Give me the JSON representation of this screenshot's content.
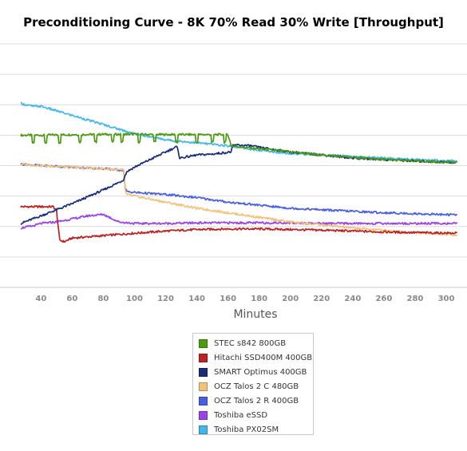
{
  "chart_data": {
    "type": "line",
    "title": "Preconditioning Curve - 8K 70% Read 30% Write [Throughput]",
    "xlabel": "Minutes",
    "ylabel": "",
    "x_ticks": [
      40,
      60,
      80,
      100,
      120,
      140,
      160,
      180,
      200,
      220,
      240,
      260,
      280,
      300
    ],
    "xlim": [
      27,
      307
    ],
    "ylim": [
      0,
      8
    ],
    "grid": true,
    "legend_position": "bottom",
    "series": [
      {
        "name": "STEC s842 800GB",
        "color": "#4c9a10",
        "x": [
          27,
          40,
          60,
          80,
          100,
          120,
          140,
          160,
          162,
          180,
          200,
          220,
          240,
          260,
          280,
          307
        ],
        "values": [
          5.0,
          5.0,
          5.02,
          5.03,
          5.03,
          5.02,
          5.02,
          5.02,
          4.65,
          4.55,
          4.45,
          4.35,
          4.27,
          4.2,
          4.15,
          4.1
        ],
        "dips": [
          35,
          43,
          52,
          65,
          75,
          86,
          92,
          103,
          113,
          127,
          140,
          150,
          158
        ]
      },
      {
        "name": "Hitachi SSD400M 400GB",
        "color": "#bb2222",
        "x": [
          27,
          40,
          48,
          50,
          52,
          55,
          60,
          80,
          100,
          120,
          140,
          160,
          180,
          200,
          220,
          240,
          260,
          280,
          307
        ],
        "values": [
          2.65,
          2.65,
          2.65,
          2.5,
          1.55,
          1.5,
          1.62,
          1.7,
          1.78,
          1.85,
          1.9,
          1.92,
          1.92,
          1.9,
          1.88,
          1.85,
          1.82,
          1.8,
          1.78
        ]
      },
      {
        "name": "SMART Optimus 400GB",
        "color": "#1a2c7a",
        "x": [
          27,
          40,
          60,
          80,
          92,
          93,
          95,
          100,
          110,
          120,
          127,
          128,
          129,
          135,
          140,
          150,
          162,
          163,
          165,
          175,
          180,
          200,
          220,
          240,
          260,
          280,
          307
        ],
        "values": [
          2.1,
          2.35,
          2.75,
          3.2,
          3.5,
          3.55,
          3.8,
          3.95,
          4.2,
          4.45,
          4.62,
          4.5,
          4.25,
          4.3,
          4.35,
          4.38,
          4.45,
          4.65,
          4.68,
          4.65,
          4.6,
          4.45,
          4.35,
          4.25,
          4.2,
          4.15,
          4.1
        ]
      },
      {
        "name": "OCZ Talos 2 C 480GB",
        "color": "#f2c27c",
        "x": [
          27,
          40,
          60,
          80,
          93,
          94,
          95,
          100,
          120,
          140,
          160,
          180,
          200,
          220,
          240,
          260,
          280,
          307
        ],
        "values": [
          4.05,
          4.0,
          3.95,
          3.9,
          3.85,
          3.2,
          3.05,
          3.0,
          2.8,
          2.6,
          2.45,
          2.3,
          2.15,
          2.05,
          1.95,
          1.88,
          1.8,
          1.72
        ]
      },
      {
        "name": "OCZ Talos 2 R 400GB",
        "color": "#4a5fe0",
        "x": [
          27,
          40,
          60,
          80,
          93,
          94,
          95,
          100,
          120,
          140,
          160,
          180,
          200,
          220,
          240,
          260,
          280,
          307
        ],
        "values": [
          4.05,
          4.0,
          3.95,
          3.9,
          3.85,
          3.25,
          3.15,
          3.12,
          3.05,
          2.95,
          2.8,
          2.7,
          2.6,
          2.55,
          2.5,
          2.45,
          2.42,
          2.38
        ]
      },
      {
        "name": "Toshiba eSSD",
        "color": "#9a44e6",
        "x": [
          27,
          35,
          40,
          50,
          60,
          70,
          80,
          90,
          100,
          120,
          140,
          160,
          180,
          200,
          220,
          240,
          260,
          280,
          307
        ],
        "values": [
          1.95,
          2.02,
          2.1,
          2.15,
          2.25,
          2.35,
          2.4,
          2.15,
          2.1,
          2.1,
          2.12,
          2.12,
          2.12,
          2.12,
          2.1,
          2.1,
          2.1,
          2.1,
          2.1
        ]
      },
      {
        "name": "Toshiba PX02SM",
        "color": "#44b6e8",
        "x": [
          27,
          30,
          35,
          40,
          50,
          60,
          70,
          80,
          90,
          100,
          110,
          120,
          140,
          160,
          180,
          200,
          220,
          240,
          260,
          280,
          307
        ],
        "values": [
          6.05,
          6.0,
          5.95,
          5.95,
          5.8,
          5.65,
          5.5,
          5.35,
          5.2,
          5.05,
          4.95,
          4.85,
          4.75,
          4.65,
          4.5,
          4.4,
          4.35,
          4.3,
          4.25,
          4.2,
          4.15
        ]
      }
    ]
  }
}
